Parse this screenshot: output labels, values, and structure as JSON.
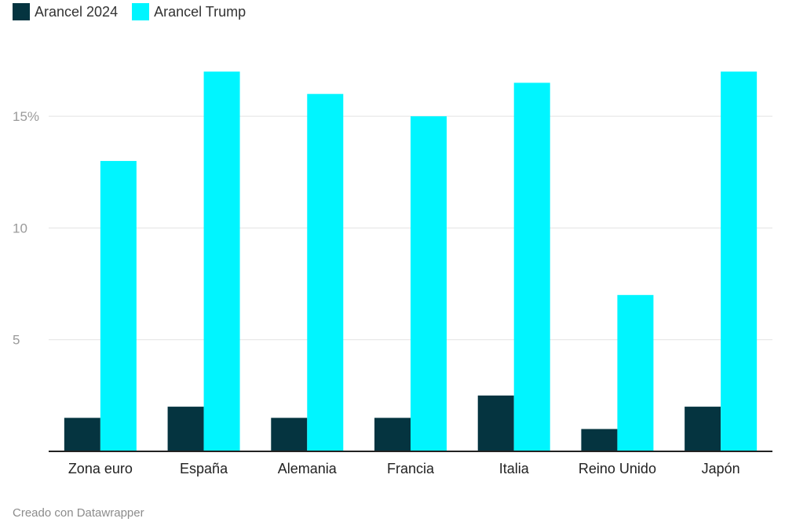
{
  "chart_data": {
    "type": "bar",
    "categories": [
      "Zona euro",
      "España",
      "Alemania",
      "Francia",
      "Italia",
      "Reino Unido",
      "Japón"
    ],
    "series": [
      {
        "name": "Arancel 2024",
        "color": "#053440",
        "values": [
          1.5,
          2.0,
          1.5,
          1.5,
          2.5,
          1.0,
          2.0
        ]
      },
      {
        "name": "Arancel Trump",
        "color": "#00f5ff",
        "values": [
          13,
          17,
          16,
          15,
          16.5,
          7,
          17
        ]
      }
    ],
    "ylim": [
      0,
      17.5
    ],
    "yticks": [
      {
        "value": 5,
        "label": "5"
      },
      {
        "value": 10,
        "label": "10"
      },
      {
        "value": 15,
        "label": "15%"
      }
    ],
    "grid": true,
    "legend": "top-left"
  },
  "footer": {
    "credit": "Creado con Datawrapper"
  }
}
